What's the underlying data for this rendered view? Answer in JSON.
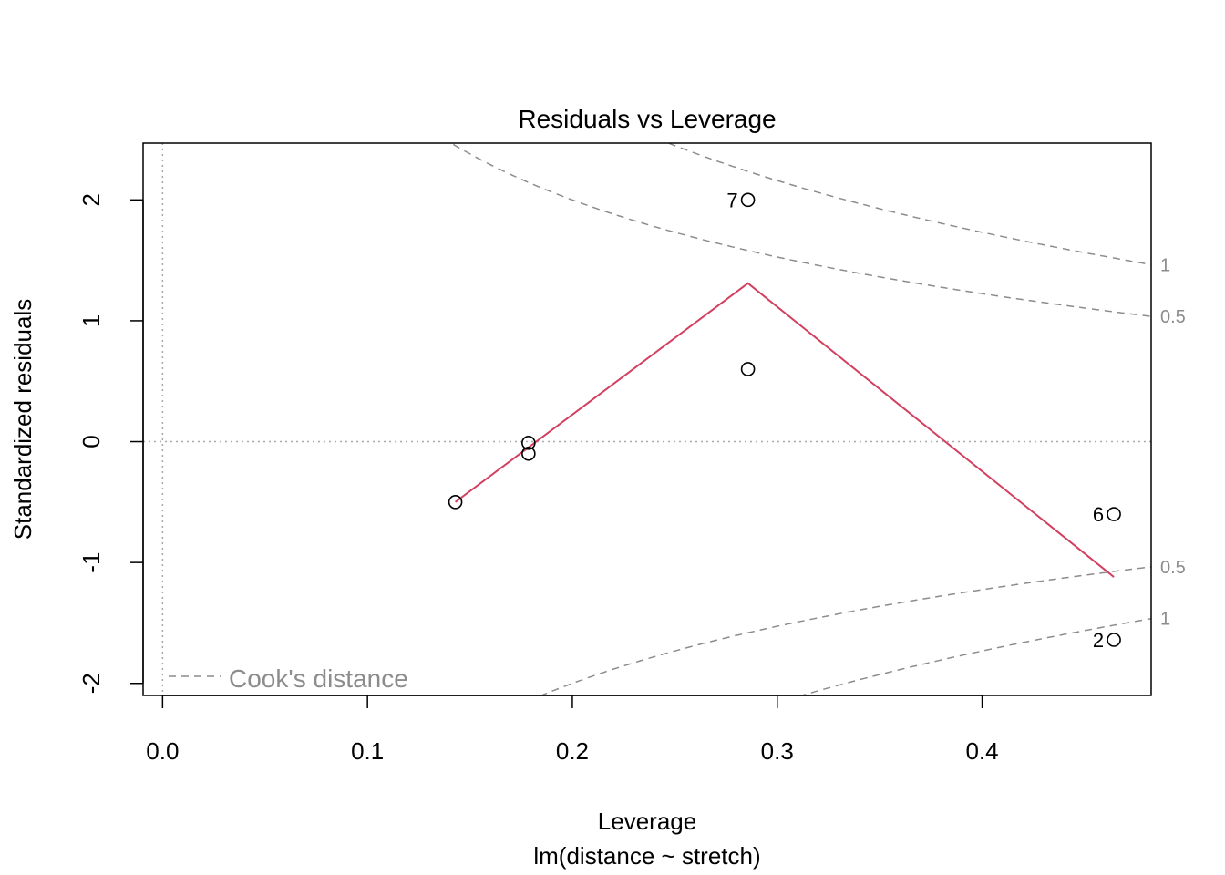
{
  "chart_data": {
    "type": "scatter",
    "title": "Residuals vs Leverage",
    "xlabel": "Leverage",
    "subtitle": "lm(distance ~ stretch)",
    "ylabel": "Standardized residuals",
    "xlim": [
      -0.0095,
      0.4825
    ],
    "ylim": [
      -2.1,
      2.47
    ],
    "x_ticks": [
      0.0,
      0.1,
      0.2,
      0.3,
      0.4
    ],
    "x_tick_labels": [
      "0.0",
      "0.1",
      "0.2",
      "0.3",
      "0.4"
    ],
    "y_ticks": [
      -2,
      -1,
      0,
      1,
      2
    ],
    "y_tick_labels": [
      "-2",
      "-1",
      "0",
      "1",
      "2"
    ],
    "points": [
      {
        "x": 0.1429,
        "y": -0.5,
        "label": ""
      },
      {
        "x": 0.1786,
        "y": -0.01,
        "label": ""
      },
      {
        "x": 0.1786,
        "y": -0.1,
        "label": ""
      },
      {
        "x": 0.2857,
        "y": 0.6,
        "label": ""
      },
      {
        "x": 0.2857,
        "y": 2.0,
        "label": "7"
      },
      {
        "x": 0.4643,
        "y": -0.6,
        "label": "6"
      },
      {
        "x": 0.4643,
        "y": -1.64,
        "label": "2"
      }
    ],
    "smoother": {
      "color": "#d2405f",
      "x": [
        0.1429,
        0.2857,
        0.4643
      ],
      "y": [
        -0.5,
        1.31,
        -1.12
      ]
    },
    "reference_lines": {
      "h": 0,
      "v": 0,
      "style": "dotted",
      "color": "#aaaaaa"
    },
    "cooks_distance": {
      "color": "#8c8c8c",
      "levels": [
        0.5,
        1
      ],
      "level_labels": [
        "0.5",
        "1"
      ],
      "n_params": 2
    },
    "legend": {
      "position": "bottom-left",
      "entries": [
        "Cook's distance"
      ]
    },
    "grid": false
  }
}
